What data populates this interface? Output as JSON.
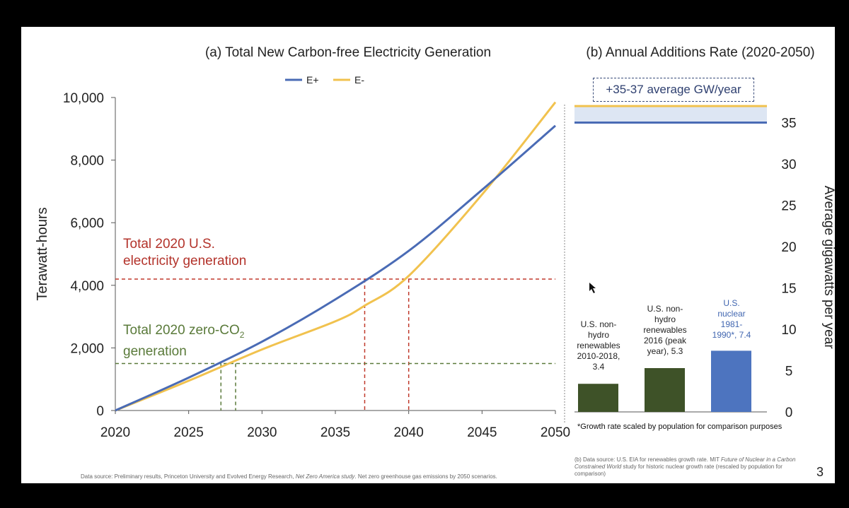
{
  "page": {
    "number": "3",
    "footnote": "*Growth rate scaled by population for comparison purposes",
    "source_a_pre": "Data source: Preliminary results, Princeton University and Evolved Energy Research, ",
    "source_a_ital": "Net Zero America study",
    "source_a_post": ". Net zero greenhouse gas emissions by 2050 scenarios.",
    "source_b_pre": "(b) Data source: U.S. EIA for renewables growth rate. MIT ",
    "source_b_ital": "Future of Nuclear in a Carbon Constrained World",
    "source_b_post": " study for historic nuclear growth rate (rescaled by population for comparison)"
  },
  "colors": {
    "e_plus": "#4a6bb5",
    "e_minus": "#f1c24e",
    "red_ref": "#c0392b",
    "green_ref": "#5a7a3a",
    "bar_green": "#3e5228",
    "bar_blue": "#4d74bf"
  },
  "annotations": {
    "total_line1": "Total 2020 U.S.",
    "total_line2": "electricity generation",
    "zero_line1": "Total 2020 zero-CO",
    "zero_sub": "2",
    "zero_line2": "generation",
    "average_box": "+35-37 average GW/year"
  },
  "chart_data": [
    {
      "type": "line",
      "title": "(a) Total New Carbon-free Electricity Generation",
      "ylabel": "Terawatt-hours",
      "xlabel": "",
      "xlim": [
        2020,
        2050
      ],
      "ylim": [
        0,
        10000
      ],
      "x_ticks": [
        "2020",
        "2025",
        "2030",
        "2035",
        "2040",
        "2045",
        "2050"
      ],
      "y_ticks": [
        "0",
        "2,000",
        "4,000",
        "6,000",
        "8,000",
        "10,000"
      ],
      "legend": [
        "E+",
        "E-"
      ],
      "series": [
        {
          "name": "E+",
          "x": [
            2020,
            2025,
            2030,
            2035,
            2040,
            2045,
            2050
          ],
          "values": [
            0,
            1050,
            2200,
            3550,
            5100,
            7050,
            9100
          ]
        },
        {
          "name": "E-",
          "x": [
            2020,
            2025,
            2030,
            2035,
            2037,
            2040,
            2045,
            2050
          ],
          "values": [
            0,
            950,
            1950,
            2850,
            3350,
            4300,
            6900,
            9850
          ]
        }
      ],
      "reference_lines": [
        {
          "label": "Total 2020 U.S. electricity generation",
          "y": 4200,
          "x_crossings": [
            2037,
            2040
          ]
        },
        {
          "label": "Total 2020 zero-CO2 generation",
          "y": 1500,
          "x_crossings": [
            2027.2,
            2028.2
          ]
        }
      ]
    },
    {
      "type": "bar",
      "title": "(b) Annual Additions Rate (2020-2050)",
      "ylabel": "Average gigawatts per year",
      "ylim": [
        0,
        37
      ],
      "y_ticks": [
        "0",
        "5",
        "10",
        "15",
        "20",
        "25",
        "30",
        "35"
      ],
      "categories": [
        "U.S. non-hydro renewables 2010-2018, 3.4",
        "U.S. non-hydro renewables 2016 (peak year), 5.3",
        "U.S. nuclear 1981-1990*, 7.4"
      ],
      "label_lines": [
        [
          "U.S. non-",
          "hydro",
          "renewables",
          "2010-2018,",
          "3.4"
        ],
        [
          "U.S. non-",
          "hydro",
          "renewables",
          "2016 (peak",
          "year), 5.3"
        ],
        [
          "U.S.",
          "nuclear",
          "1981-",
          "1990*, 7.4"
        ]
      ],
      "values": [
        3.4,
        5.3,
        7.4
      ],
      "reference_band": {
        "label": "+35-37 average GW/year",
        "low": 35,
        "high": 37
      }
    }
  ]
}
